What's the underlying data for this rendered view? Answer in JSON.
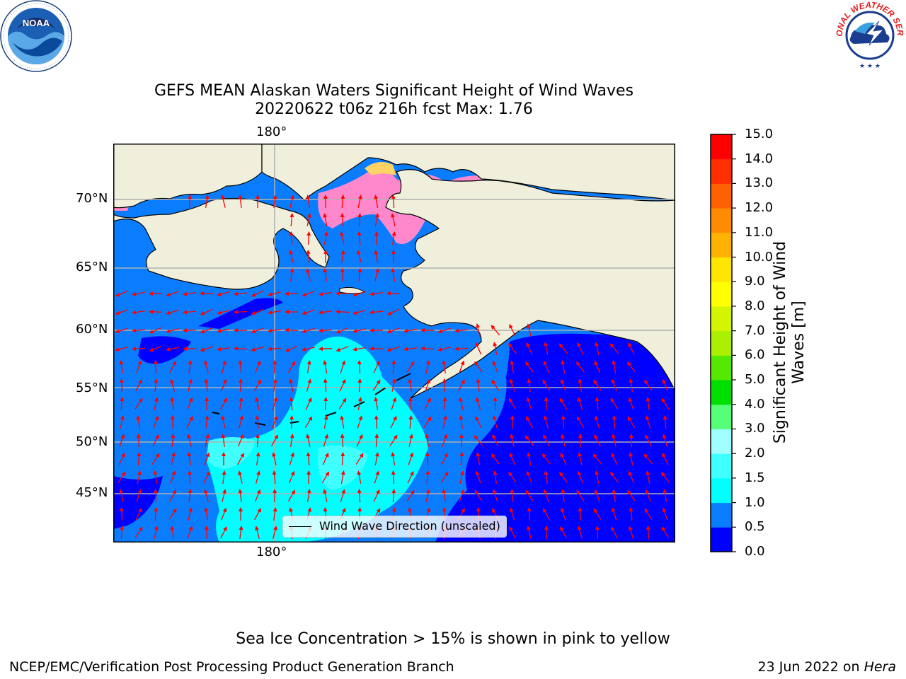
{
  "header": {
    "title_line1": "GEFS MEAN Alaskan Waters Significant Height of Wind Waves",
    "title_line2": "20220622 t06z 216h fcst   Max: 1.76"
  },
  "logos": {
    "noaa": {
      "text": "NOAA",
      "ring_text": "NATIONAL OCEANIC AND ATMOSPHERIC ADMINISTRATION · U.S. DEPARTMENT OF COMMERCE"
    },
    "nws": {
      "ring_text": "NATIONAL WEATHER SERVICE"
    }
  },
  "map": {
    "lon_labels": [
      "180°",
      "180°"
    ],
    "lat_labels": [
      "70°N",
      "65°N",
      "60°N",
      "55°N",
      "50°N",
      "45°N"
    ],
    "legend_label": "Wind Wave Direction (unscaled)",
    "colors": {
      "land": "#efefdb",
      "coast": "#000000",
      "grid": "#b0b0b0",
      "arrow": "#ff0000"
    }
  },
  "colorbar": {
    "label": "Significant Height of Wind Waves [m]",
    "label_line1": "Significant Height of Wind",
    "label_line2": "Waves [m]",
    "ticks": [
      "0.0",
      "0.5",
      "1.0",
      "1.5",
      "2.0",
      "3.0",
      "4.0",
      "5.0",
      "6.0",
      "7.0",
      "8.0",
      "9.0",
      "10.0",
      "11.0",
      "12.0",
      "13.0",
      "14.0",
      "15.0"
    ],
    "colors": [
      "#0000ff",
      "#0a7dff",
      "#00ffff",
      "#40ffff",
      "#a0ffff",
      "#55ff78",
      "#00e000",
      "#55e800",
      "#aaf000",
      "#d4f500",
      "#ffff00",
      "#ffe600",
      "#ffb300",
      "#ff8c00",
      "#ff6000",
      "#ff3000",
      "#ff0000"
    ]
  },
  "footer": {
    "note": "Sea Ice Concentration > 15% is shown in pink to yellow",
    "left": "NCEP/EMC/Verification Post Processing Product Generation Branch",
    "right_prefix": "23 Jun 2022 on ",
    "right_machine": "Hera"
  }
}
